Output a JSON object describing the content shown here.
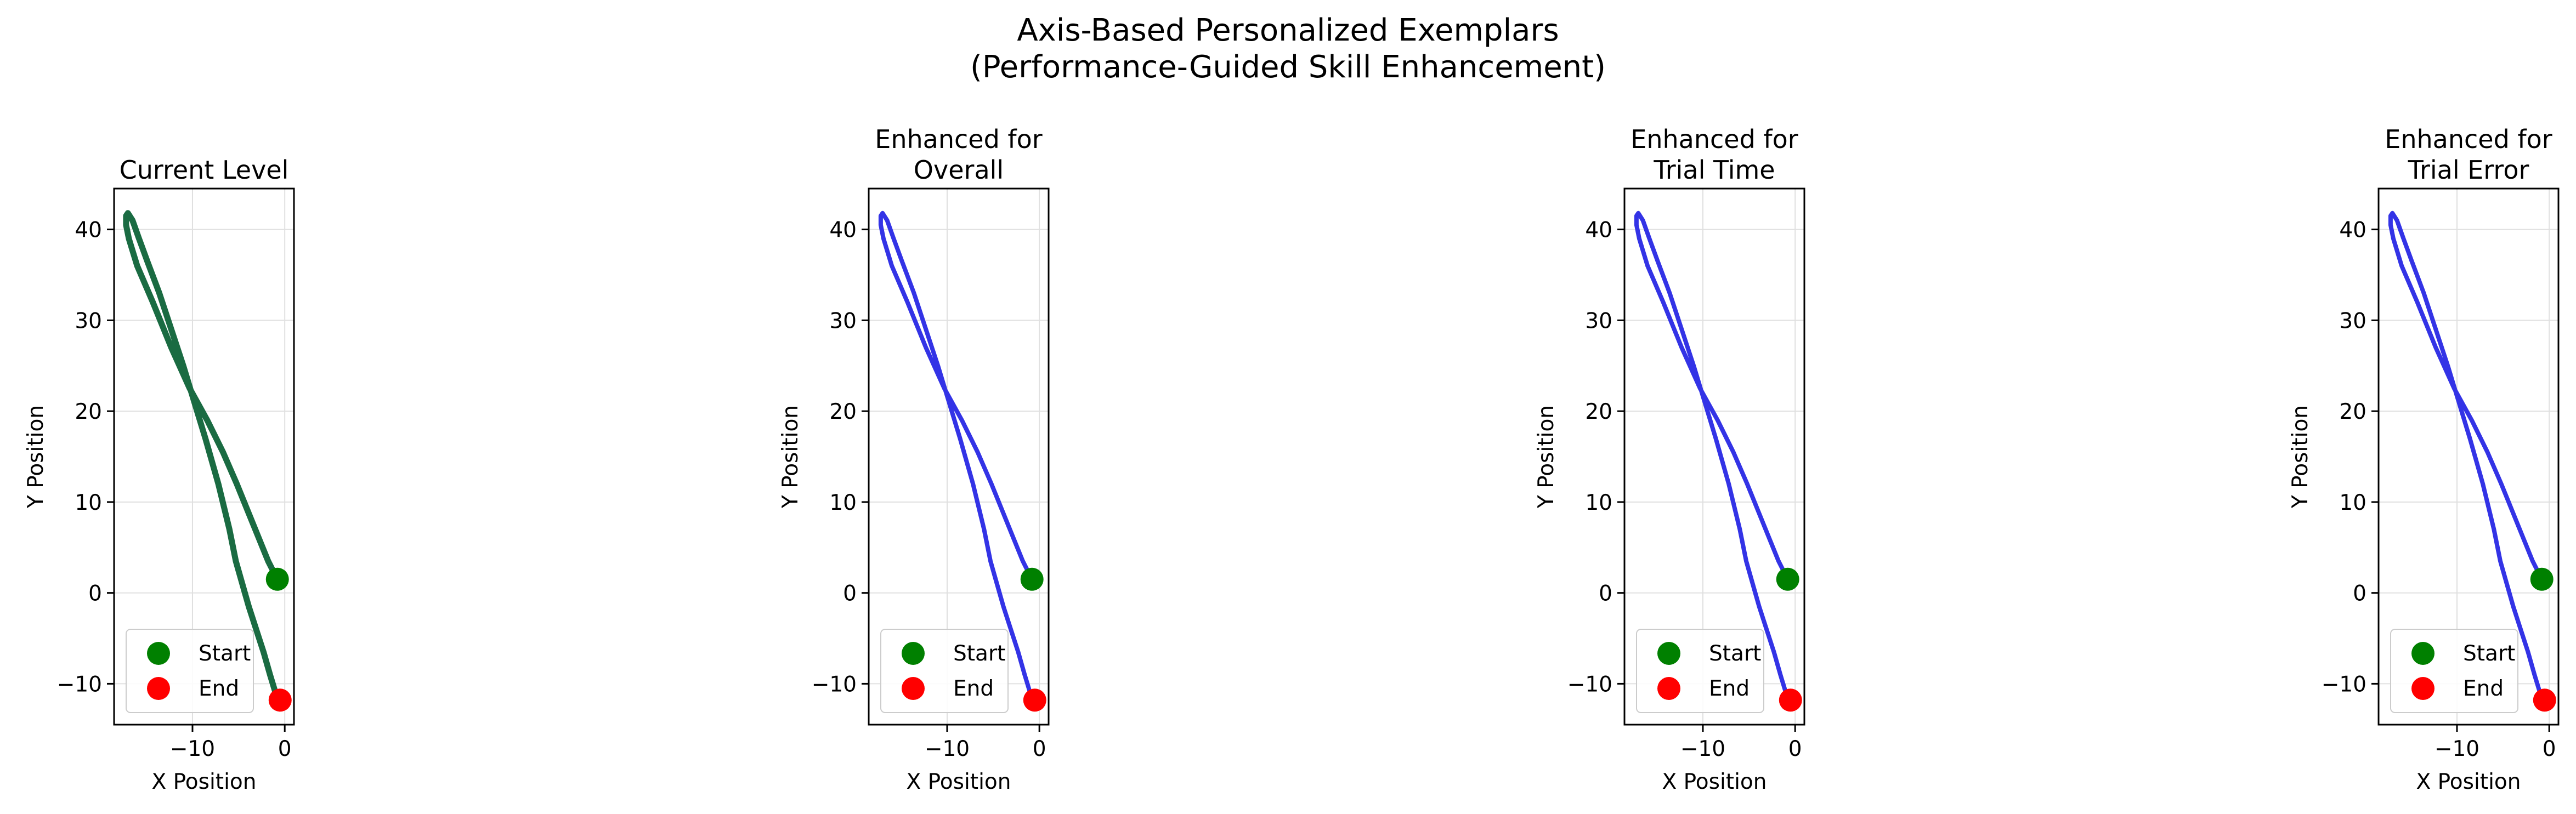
{
  "figure": {
    "title_line1": "Axis-Based Personalized Exemplars",
    "title_line2": "(Performance-Guided Skill Enhancement)"
  },
  "colors": {
    "current": "#1a6b42",
    "enhanced": "#3333e6",
    "start": "#008000",
    "end": "#ff0000",
    "grid": "#e0e0e0"
  },
  "chart_data": [
    {
      "type": "line",
      "title": [
        "Current Level"
      ],
      "xlabel": "X Position",
      "ylabel": "Y Position",
      "xlim": [
        -18.5,
        1
      ],
      "ylim": [
        -14.5,
        44.5
      ],
      "xticks": [
        -10,
        0
      ],
      "xtick_labels": [
        "−10",
        "0"
      ],
      "yticks": [
        -10,
        0,
        10,
        20,
        30,
        40
      ],
      "ytick_labels": [
        "−10",
        "0",
        "10",
        "20",
        "30",
        "40"
      ],
      "grid": true,
      "legend": {
        "position": "lower-left",
        "entries": [
          "Start",
          "End"
        ]
      },
      "series": [
        {
          "color": "current",
          "x": [
            -0.8,
            -1.8,
            -2.8,
            -4.0,
            -5.2,
            -6.7,
            -8.4,
            -10.3,
            -12.3,
            -14.3,
            -16.0,
            -16.9,
            -17.2,
            -17.2,
            -17.0,
            -16.5,
            -15.8,
            -14.9,
            -13.6,
            -12.3,
            -11.0,
            -9.8,
            -8.6,
            -7.2,
            -6.0,
            -5.3,
            -4.6,
            -3.9,
            -3.1,
            -2.3,
            -1.6,
            -1.0,
            -0.5
          ],
          "y": [
            1.5,
            3.5,
            6.0,
            9.0,
            12.0,
            15.5,
            19.0,
            22.5,
            27.0,
            32.0,
            36.0,
            39.0,
            40.5,
            41.5,
            41.8,
            41.0,
            39.0,
            36.5,
            33.0,
            29.0,
            25.0,
            21.0,
            17.0,
            12.0,
            7.0,
            3.5,
            1.0,
            -1.5,
            -4.0,
            -6.5,
            -9.0,
            -11.0,
            -11.8
          ]
        }
      ],
      "start": [
        -0.8,
        1.5
      ],
      "end": [
        -0.5,
        -11.8
      ]
    },
    {
      "type": "line",
      "title": [
        "Enhanced for",
        "Overall"
      ],
      "xlabel": "X Position",
      "ylabel": "Y Position",
      "xlim": [
        -18.5,
        1
      ],
      "ylim": [
        -14.5,
        44.5
      ],
      "xticks": [
        -10,
        0
      ],
      "xtick_labels": [
        "−10",
        "0"
      ],
      "yticks": [
        -10,
        0,
        10,
        20,
        30,
        40
      ],
      "ytick_labels": [
        "−10",
        "0",
        "10",
        "20",
        "30",
        "40"
      ],
      "grid": true,
      "legend": {
        "position": "lower-left",
        "entries": [
          "Start",
          "End"
        ]
      },
      "series": [
        {
          "color": "enhanced",
          "x": [
            -0.8,
            -1.8,
            -2.8,
            -4.0,
            -5.2,
            -6.7,
            -8.4,
            -10.3,
            -12.3,
            -14.3,
            -16.0,
            -16.9,
            -17.2,
            -17.2,
            -17.0,
            -16.5,
            -15.8,
            -14.9,
            -13.6,
            -12.3,
            -11.0,
            -9.8,
            -8.6,
            -7.2,
            -6.0,
            -5.3,
            -4.6,
            -3.9,
            -3.1,
            -2.3,
            -1.6,
            -1.0,
            -0.5
          ],
          "y": [
            1.5,
            3.5,
            6.0,
            9.0,
            12.0,
            15.5,
            19.0,
            22.5,
            27.0,
            32.0,
            36.0,
            39.0,
            40.5,
            41.5,
            41.8,
            41.0,
            39.0,
            36.5,
            33.0,
            29.0,
            25.0,
            21.0,
            17.0,
            12.0,
            7.0,
            3.5,
            1.0,
            -1.5,
            -4.0,
            -6.5,
            -9.0,
            -11.0,
            -11.8
          ]
        }
      ],
      "start": [
        -0.8,
        1.5
      ],
      "end": [
        -0.5,
        -11.8
      ]
    },
    {
      "type": "line",
      "title": [
        "Enhanced for",
        "Trial Time"
      ],
      "xlabel": "X Position",
      "ylabel": "Y Position",
      "xlim": [
        -18.5,
        1
      ],
      "ylim": [
        -14.5,
        44.5
      ],
      "xticks": [
        -10,
        0
      ],
      "xtick_labels": [
        "−10",
        "0"
      ],
      "yticks": [
        -10,
        0,
        10,
        20,
        30,
        40
      ],
      "ytick_labels": [
        "−10",
        "0",
        "10",
        "20",
        "30",
        "40"
      ],
      "grid": true,
      "legend": {
        "position": "lower-left",
        "entries": [
          "Start",
          "End"
        ]
      },
      "series": [
        {
          "color": "enhanced",
          "x": [
            -0.8,
            -1.8,
            -2.8,
            -4.0,
            -5.2,
            -6.7,
            -8.4,
            -10.3,
            -12.3,
            -14.3,
            -16.0,
            -16.9,
            -17.2,
            -17.2,
            -17.0,
            -16.5,
            -15.8,
            -14.9,
            -13.6,
            -12.3,
            -11.0,
            -9.8,
            -8.6,
            -7.2,
            -6.0,
            -5.3,
            -4.6,
            -3.9,
            -3.1,
            -2.3,
            -1.6,
            -1.0,
            -0.5
          ],
          "y": [
            1.5,
            3.5,
            6.0,
            9.0,
            12.0,
            15.5,
            19.0,
            22.5,
            27.0,
            32.0,
            36.0,
            39.0,
            40.5,
            41.5,
            41.8,
            41.0,
            39.0,
            36.5,
            33.0,
            29.0,
            25.0,
            21.0,
            17.0,
            12.0,
            7.0,
            3.5,
            1.0,
            -1.5,
            -4.0,
            -6.5,
            -9.0,
            -11.0,
            -11.8
          ]
        }
      ],
      "start": [
        -0.8,
        1.5
      ],
      "end": [
        -0.5,
        -11.8
      ]
    },
    {
      "type": "line",
      "title": [
        "Enhanced for",
        "Trial Error"
      ],
      "xlabel": "X Position",
      "ylabel": "Y Position",
      "xlim": [
        -18.5,
        1
      ],
      "ylim": [
        -14.5,
        44.5
      ],
      "xticks": [
        -10,
        0
      ],
      "xtick_labels": [
        "−10",
        "0"
      ],
      "yticks": [
        -10,
        0,
        10,
        20,
        30,
        40
      ],
      "ytick_labels": [
        "−10",
        "0",
        "10",
        "20",
        "30",
        "40"
      ],
      "grid": true,
      "legend": {
        "position": "lower-left",
        "entries": [
          "Start",
          "End"
        ]
      },
      "series": [
        {
          "color": "enhanced",
          "x": [
            -0.8,
            -1.8,
            -2.8,
            -4.0,
            -5.2,
            -6.7,
            -8.4,
            -10.3,
            -12.3,
            -14.3,
            -16.0,
            -16.9,
            -17.2,
            -17.2,
            -17.0,
            -16.5,
            -15.8,
            -14.9,
            -13.6,
            -12.3,
            -11.0,
            -9.8,
            -8.6,
            -7.2,
            -6.0,
            -5.3,
            -4.6,
            -3.9,
            -3.1,
            -2.3,
            -1.6,
            -1.0,
            -0.5
          ],
          "y": [
            1.5,
            3.5,
            6.0,
            9.0,
            12.0,
            15.5,
            19.0,
            22.5,
            27.0,
            32.0,
            36.0,
            39.0,
            40.5,
            41.5,
            41.8,
            41.0,
            39.0,
            36.5,
            33.0,
            29.0,
            25.0,
            21.0,
            17.0,
            12.0,
            7.0,
            3.5,
            1.0,
            -1.5,
            -4.0,
            -6.5,
            -9.0,
            -11.0,
            -11.8
          ]
        }
      ],
      "start": [
        -0.8,
        1.5
      ],
      "end": [
        -0.5,
        -11.8
      ]
    }
  ]
}
